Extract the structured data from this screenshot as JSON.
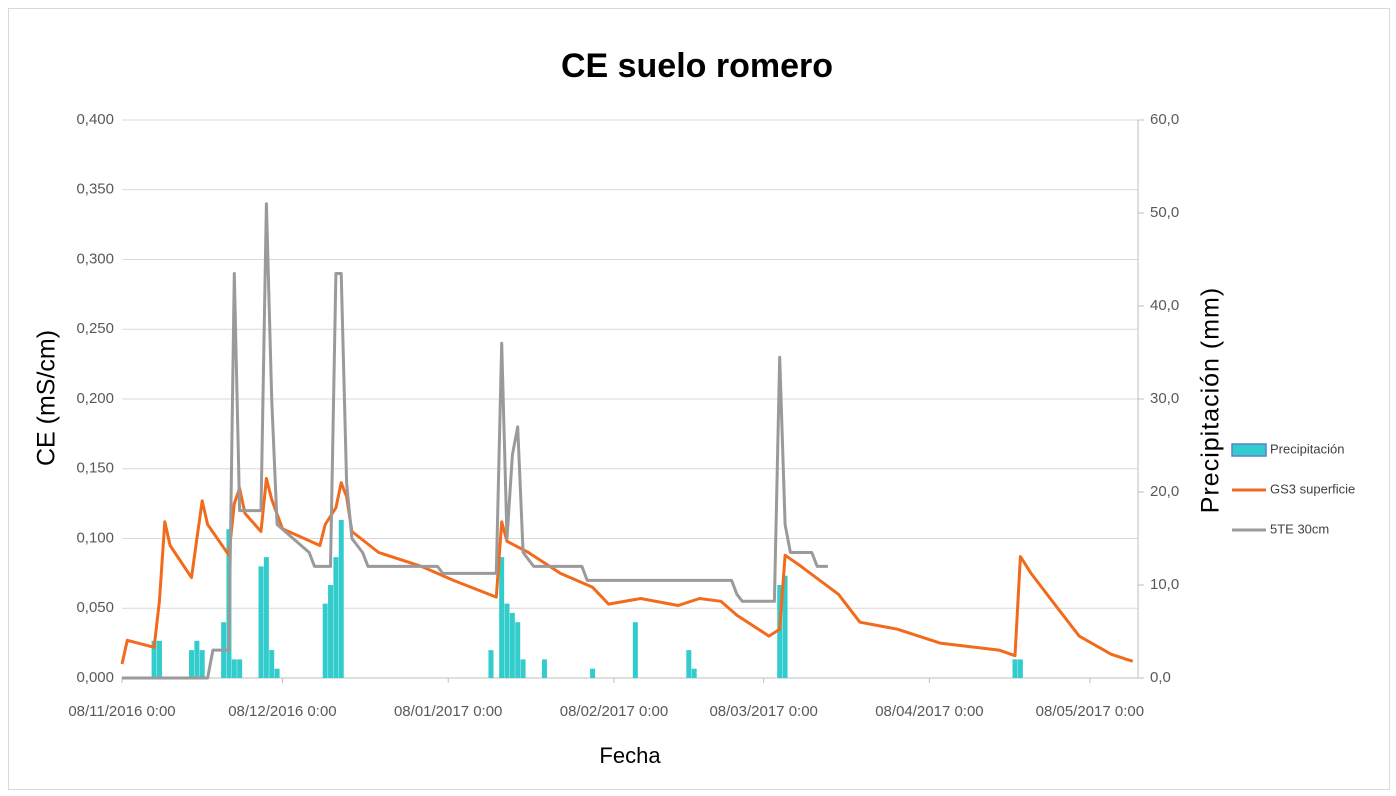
{
  "chart_data": {
    "type": "line",
    "title": "CE suelo romero",
    "x_label": "Fecha",
    "y_label": "CE (mS/cm)",
    "y2_label": "Precipitación (mm)",
    "xlim": [
      "2016-11-08",
      "2017-05-17"
    ],
    "xticks": [
      {
        "value": "2016-11-08",
        "label": "08/11/2016 0:00"
      },
      {
        "value": "2016-12-08",
        "label": "08/12/2016 0:00"
      },
      {
        "value": "2017-01-08",
        "label": "08/01/2017 0:00"
      },
      {
        "value": "2017-02-08",
        "label": "08/02/2017 0:00"
      },
      {
        "value": "2017-03-08",
        "label": "08/03/2017 0:00"
      },
      {
        "value": "2017-04-08",
        "label": "08/04/2017 0:00"
      },
      {
        "value": "2017-05-08",
        "label": "08/05/2017 0:00"
      }
    ],
    "ylim": [
      0,
      0.4
    ],
    "yticks": [
      {
        "value": 0,
        "label": "0,000"
      },
      {
        "value": 0.05,
        "label": "0,050"
      },
      {
        "value": 0.1,
        "label": "0,100"
      },
      {
        "value": 0.15,
        "label": "0,150"
      },
      {
        "value": 0.2,
        "label": "0,200"
      },
      {
        "value": 0.25,
        "label": "0,250"
      },
      {
        "value": 0.3,
        "label": "0,300"
      },
      {
        "value": 0.35,
        "label": "0,350"
      },
      {
        "value": 0.4,
        "label": "0,400"
      }
    ],
    "y2lim": [
      0,
      60
    ],
    "y2ticks": [
      {
        "value": 0,
        "label": "0,0"
      },
      {
        "value": 10,
        "label": "10,0"
      },
      {
        "value": 20,
        "label": "20,0"
      },
      {
        "value": 30,
        "label": "30,0"
      },
      {
        "value": 40,
        "label": "40,0"
      },
      {
        "value": 50,
        "label": "50,0"
      },
      {
        "value": 60,
        "label": "60,0"
      }
    ],
    "grid": true,
    "legend": "right",
    "series": [
      {
        "name": "Precipitación",
        "color": "#33cccc",
        "type": "bar",
        "axis": "y2",
        "x": [
          "2016-11-14",
          "2016-11-15",
          "2016-11-21",
          "2016-11-22",
          "2016-11-23",
          "2016-11-27",
          "2016-11-28",
          "2016-11-29",
          "2016-11-30",
          "2016-12-04",
          "2016-12-05",
          "2016-12-06",
          "2016-12-07",
          "2016-12-16",
          "2016-12-17",
          "2016-12-18",
          "2016-12-19",
          "2017-01-16",
          "2017-01-18",
          "2017-01-19",
          "2017-01-20",
          "2017-01-21",
          "2017-01-22",
          "2017-01-26",
          "2017-02-04",
          "2017-02-12",
          "2017-02-22",
          "2017-02-23",
          "2017-03-11",
          "2017-03-12",
          "2017-04-24",
          "2017-04-25"
        ],
        "values": [
          4,
          4,
          3,
          4,
          3,
          6,
          16,
          2,
          2,
          12,
          13,
          3,
          1,
          8,
          10,
          13,
          17,
          3,
          13,
          8,
          7,
          6,
          2,
          2,
          1,
          6,
          3,
          1,
          10,
          11,
          2,
          2
        ]
      },
      {
        "name": "GS3 superficie",
        "color": "#f26b1d",
        "type": "line",
        "x": [
          "2016-11-08",
          "2016-11-09",
          "2016-11-14",
          "2016-11-15",
          "2016-11-16",
          "2016-11-17",
          "2016-11-21",
          "2016-11-22",
          "2016-11-23",
          "2016-11-24",
          "2016-11-28",
          "2016-11-29",
          "2016-11-30",
          "2016-12-01",
          "2016-12-04",
          "2016-12-05",
          "2016-12-06",
          "2016-12-08",
          "2016-12-15",
          "2016-12-16",
          "2016-12-18",
          "2016-12-19",
          "2016-12-20",
          "2016-12-21",
          "2016-12-26",
          "2017-01-03",
          "2017-01-09",
          "2017-01-17",
          "2017-01-18",
          "2017-01-19",
          "2017-01-23",
          "2017-01-29",
          "2017-02-04",
          "2017-02-07",
          "2017-02-13",
          "2017-02-20",
          "2017-02-24",
          "2017-02-28",
          "2017-03-03",
          "2017-03-09",
          "2017-03-11",
          "2017-03-12",
          "2017-03-15",
          "2017-03-22",
          "2017-03-26",
          "2017-04-02",
          "2017-04-10",
          "2017-04-21",
          "2017-04-24",
          "2017-04-25",
          "2017-04-27",
          "2017-05-01",
          "2017-05-06",
          "2017-05-12",
          "2017-05-16"
        ],
        "values": [
          0.01,
          0.027,
          0.022,
          0.055,
          0.112,
          0.095,
          0.072,
          0.1,
          0.127,
          0.11,
          0.088,
          0.125,
          0.136,
          0.118,
          0.105,
          0.143,
          0.128,
          0.107,
          0.095,
          0.11,
          0.122,
          0.14,
          0.13,
          0.105,
          0.09,
          0.08,
          0.07,
          0.058,
          0.112,
          0.098,
          0.09,
          0.075,
          0.065,
          0.053,
          0.057,
          0.052,
          0.057,
          0.055,
          0.045,
          0.03,
          0.035,
          0.088,
          0.08,
          0.06,
          0.04,
          0.035,
          0.025,
          0.02,
          0.016,
          0.087,
          0.075,
          0.055,
          0.03,
          0.017,
          0.012
        ]
      },
      {
        "name": "5TE 30cm",
        "color": "#9a9a9a",
        "type": "line",
        "x": [
          "2016-11-08",
          "2016-11-24",
          "2016-11-25",
          "2016-11-28",
          "2016-11-29",
          "2016-11-30",
          "2016-12-04",
          "2016-12-05",
          "2016-12-06",
          "2016-12-07",
          "2016-12-10",
          "2016-12-13",
          "2016-12-14",
          "2016-12-17",
          "2016-12-18",
          "2016-12-19",
          "2016-12-20",
          "2016-12-21",
          "2016-12-23",
          "2016-12-24",
          "2017-01-06",
          "2017-01-07",
          "2017-01-17",
          "2017-01-18",
          "2017-01-19",
          "2017-01-20",
          "2017-01-21",
          "2017-01-22",
          "2017-01-24",
          "2017-02-02",
          "2017-02-03",
          "2017-03-02",
          "2017-03-03",
          "2017-03-04",
          "2017-03-10",
          "2017-03-11",
          "2017-03-12",
          "2017-03-13",
          "2017-03-17",
          "2017-03-18",
          "2017-03-20"
        ],
        "values": [
          0,
          0,
          0.02,
          0.02,
          0.29,
          0.12,
          0.12,
          0.34,
          0.2,
          0.11,
          0.1,
          0.09,
          0.08,
          0.08,
          0.29,
          0.29,
          0.14,
          0.1,
          0.09,
          0.08,
          0.08,
          0.075,
          0.075,
          0.24,
          0.1,
          0.16,
          0.18,
          0.09,
          0.08,
          0.08,
          0.07,
          0.07,
          0.06,
          0.055,
          0.055,
          0.23,
          0.11,
          0.09,
          0.09,
          0.08,
          0.08
        ]
      }
    ]
  }
}
